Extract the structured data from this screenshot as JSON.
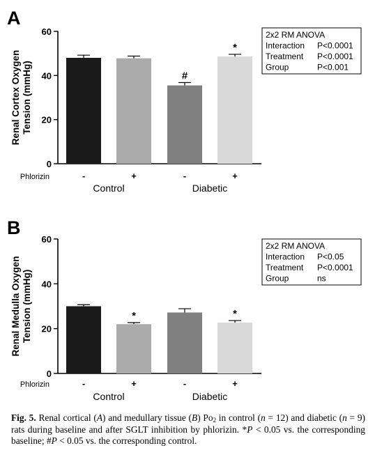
{
  "chart_data": [
    {
      "type": "bar",
      "panel_label": "A",
      "ylabel": "Renal Cortex Oxygen Tension (mmHg)",
      "ylim": [
        0,
        60
      ],
      "yticks": [
        0,
        20,
        40,
        60
      ],
      "categories": [
        "-",
        "+",
        "-",
        "+"
      ],
      "treatment_label": "Phlorizin",
      "groups": [
        {
          "label": "Control",
          "bars": [
            0,
            1
          ]
        },
        {
          "label": "Diabetic",
          "bars": [
            2,
            3
          ]
        }
      ],
      "values": [
        48,
        47.8,
        35.5,
        48.6
      ],
      "errors": [
        1.2,
        1.0,
        1.3,
        1.0
      ],
      "annotations": [
        "",
        "",
        "#",
        "*"
      ],
      "colors": [
        "#1a1a1a",
        "#aaaaaa",
        "#808080",
        "#d9d9d9"
      ],
      "legend_lines": [
        {
          "term": "2x2 RM ANOVA",
          "value": ""
        },
        {
          "term": "Interaction",
          "value": "P<0.0001"
        },
        {
          "term": "Treatment",
          "value": "P<0.0001"
        },
        {
          "term": "Group",
          "value": "P<0.001"
        }
      ]
    },
    {
      "type": "bar",
      "panel_label": "B",
      "ylabel": "Renal Medulla Oxygen Tension (mmHg)",
      "ylim": [
        0,
        60
      ],
      "yticks": [
        0,
        20,
        40,
        60
      ],
      "categories": [
        "-",
        "+",
        "-",
        "+"
      ],
      "treatment_label": "Phlorizin",
      "groups": [
        {
          "label": "Control",
          "bars": [
            0,
            1
          ]
        },
        {
          "label": "Diabetic",
          "bars": [
            2,
            3
          ]
        }
      ],
      "values": [
        30,
        22,
        27.2,
        22.7
      ],
      "errors": [
        0.7,
        0.7,
        1.7,
        0.9
      ],
      "annotations": [
        "",
        "*",
        "",
        "*"
      ],
      "colors": [
        "#1a1a1a",
        "#aaaaaa",
        "#808080",
        "#d9d9d9"
      ],
      "legend_lines": [
        {
          "term": "2x2 RM ANOVA",
          "value": ""
        },
        {
          "term": "Interaction",
          "value": "P<0.05"
        },
        {
          "term": "Treatment",
          "value": "P<0.0001"
        },
        {
          "term": "Group",
          "value": "ns"
        }
      ]
    }
  ],
  "caption": {
    "fig": "Fig. 5.",
    "t1": " Renal cortical (",
    "a": "A",
    "t2": ") and medullary tissue (",
    "b": "B",
    "t3": ") Po",
    "sub2": "2",
    "t4": " in control (",
    "n1": "n",
    "t5": " = 12) and diabetic (",
    "n2": "n",
    "t6": " = 9) rats during baseline and after SGLT inhibition by phlorizin. *",
    "p1": "P",
    "t7": " < 0.05 vs. the corresponding baseline; #",
    "p2": "P",
    "t8": " < 0.05 vs. the corresponding control."
  }
}
